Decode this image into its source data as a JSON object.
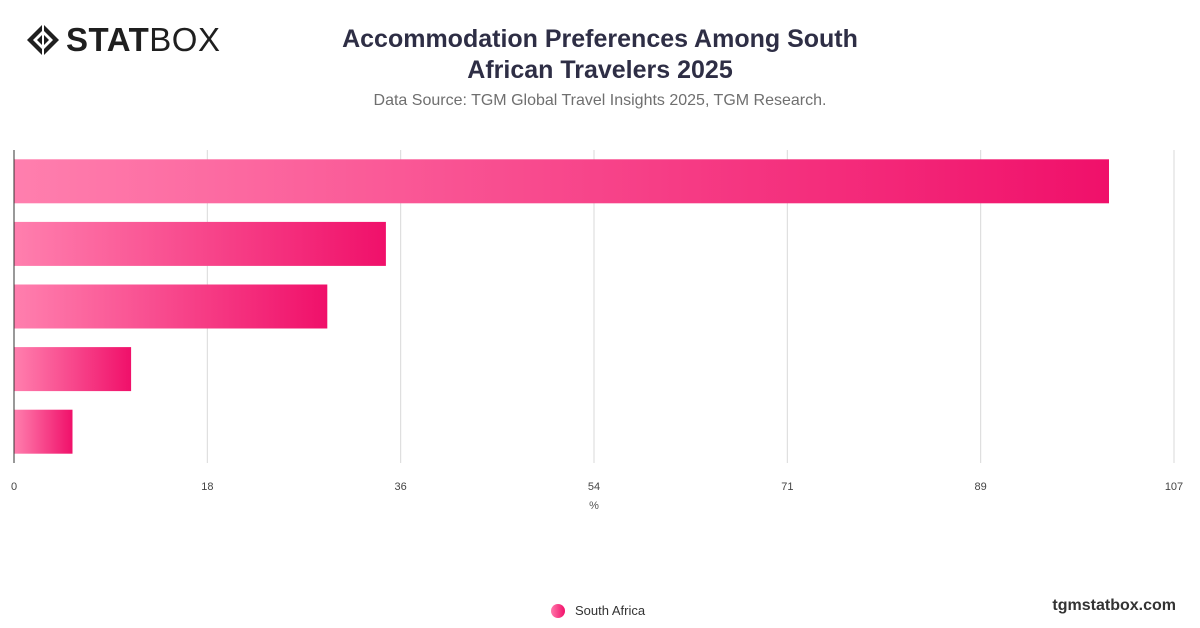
{
  "logo": {
    "bold_text": "STAT",
    "light_text": "BOX",
    "icon": "statbox-diamond-logo"
  },
  "title": "Accommodation Preferences Among South African Travelers 2025",
  "subtitle": "Data Source: TGM Global Travel Insights 2025, TGM Research.",
  "legend": {
    "label": "South Africa",
    "color": "#f2116a"
  },
  "watermark": "tgmstatbox.com",
  "colors": {
    "bar_start": "#ff7fae",
    "bar_end": "#f0106a",
    "grid": "#d9d9d9",
    "axis": "#333333"
  },
  "chart_data": {
    "type": "bar",
    "orientation": "horizontal",
    "categories": [
      "",
      "",
      "",
      "",
      ""
    ],
    "series": [
      {
        "name": "South Africa",
        "values": [
          101,
          34.3,
          28.9,
          10.8,
          5.4
        ]
      }
    ],
    "xlim": [
      0,
      107
    ],
    "xticks": [
      "0",
      "18",
      "36",
      "54",
      "71",
      "89",
      "107"
    ],
    "xlabel": "%",
    "ylabel": "",
    "grid": true,
    "legend_position": "bottom"
  }
}
